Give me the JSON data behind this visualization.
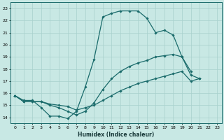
{
  "title": "",
  "xlabel": "Humidex (Indice chaleur)",
  "xlim": [
    -0.5,
    23.5
  ],
  "ylim": [
    13.5,
    23.5
  ],
  "yticks": [
    14,
    15,
    16,
    17,
    18,
    19,
    20,
    21,
    22,
    23
  ],
  "xticks": [
    0,
    1,
    2,
    3,
    4,
    5,
    6,
    7,
    8,
    9,
    10,
    11,
    12,
    13,
    14,
    15,
    16,
    17,
    18,
    19,
    20,
    21,
    22,
    23
  ],
  "bg_color": "#c8e8e4",
  "line_color": "#1a6b6b",
  "grid_color": "#a8d0cc",
  "lines": [
    {
      "x": [
        0,
        1,
        2,
        3,
        4,
        5,
        6,
        7,
        8,
        9,
        10,
        11,
        12,
        13,
        14,
        15,
        16,
        17,
        18,
        19,
        20
      ],
      "y": [
        15.8,
        15.4,
        15.4,
        14.8,
        14.1,
        14.1,
        13.9,
        14.5,
        16.5,
        18.8,
        22.3,
        22.6,
        22.8,
        22.8,
        22.8,
        22.2,
        21.0,
        21.2,
        20.8,
        19.0,
        17.8
      ]
    },
    {
      "x": [
        0,
        1,
        2,
        3,
        4,
        5,
        6,
        7,
        8,
        9,
        10,
        11,
        12,
        13,
        14,
        15,
        16,
        17,
        18,
        19,
        20,
        21,
        22,
        23
      ],
      "y": [
        15.8,
        15.3,
        15.3,
        15.3,
        15.0,
        14.8,
        14.5,
        14.2,
        14.5,
        15.2,
        16.3,
        17.2,
        17.8,
        18.2,
        18.5,
        18.7,
        19.0,
        19.1,
        19.2,
        19.0,
        17.5,
        17.2,
        null,
        null
      ]
    },
    {
      "x": [
        0,
        1,
        2,
        3,
        4,
        5,
        6,
        7,
        8,
        9,
        10,
        11,
        12,
        13,
        14,
        15,
        16,
        17,
        18,
        19,
        20,
        21,
        22,
        23
      ],
      "y": [
        15.8,
        15.3,
        15.3,
        15.3,
        15.1,
        15.0,
        14.9,
        14.6,
        14.8,
        15.0,
        15.4,
        15.8,
        16.2,
        16.5,
        16.8,
        17.0,
        17.2,
        17.4,
        17.6,
        17.8,
        17.0,
        17.2,
        null,
        null
      ]
    }
  ]
}
